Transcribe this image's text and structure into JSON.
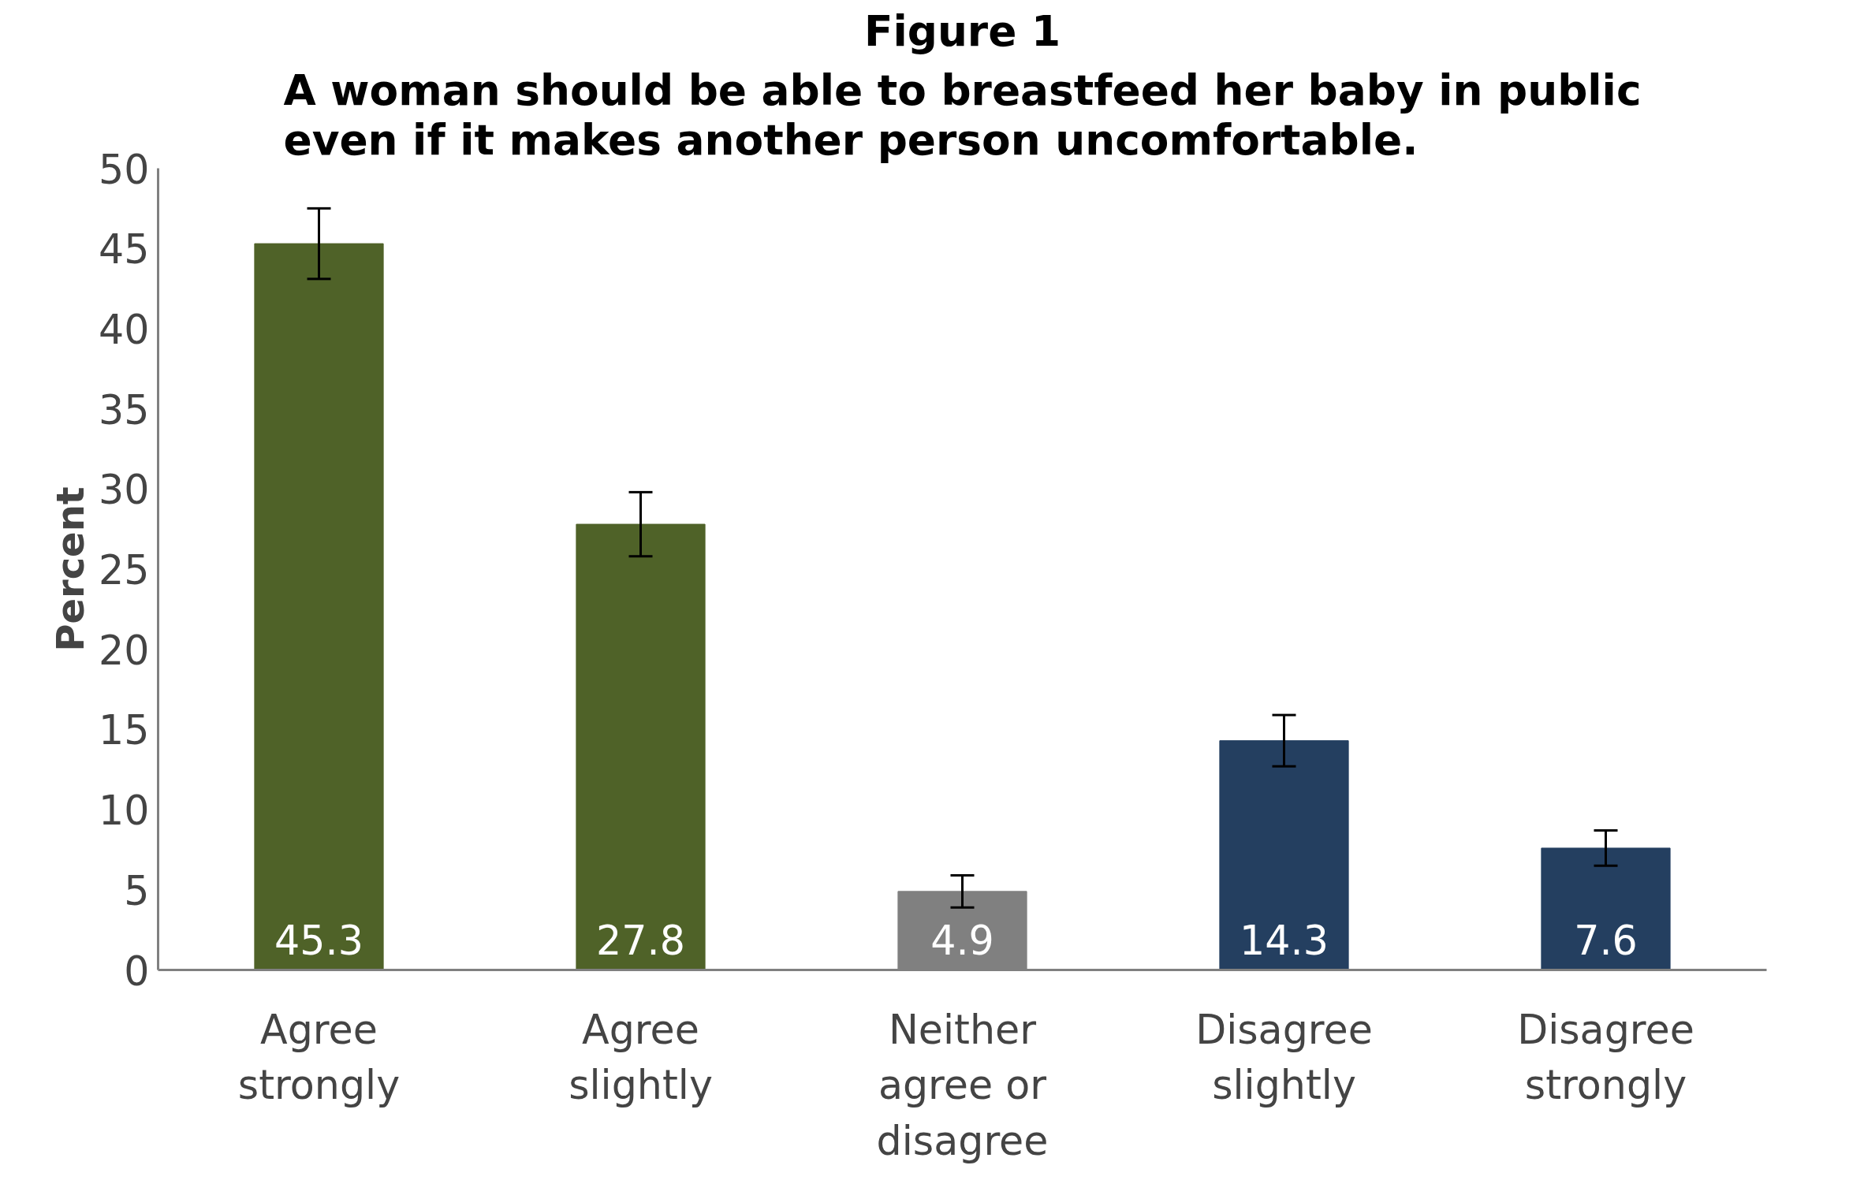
{
  "chart_data": {
    "type": "bar",
    "title": "Figure 1",
    "subtitle": "A woman should be able to breastfeed her baby in public even if it makes another person uncomfortable.",
    "ylabel": "Percent",
    "categories": [
      "Agree strongly",
      "Agree slightly",
      "Neither agree or disagree",
      "Disagree slightly",
      "Disagree strongly"
    ],
    "values": [
      45.3,
      27.8,
      4.9,
      14.3,
      7.6
    ],
    "colors": [
      "#4f6228",
      "#4f6228",
      "#808080",
      "#243f60",
      "#243f60"
    ],
    "errors": [
      2.2,
      2.0,
      1.0,
      1.6,
      1.1
    ],
    "ylim": [
      0,
      50
    ],
    "yticks": [
      0,
      5,
      10,
      15,
      20,
      25,
      30,
      35,
      40,
      45,
      50
    ],
    "data_labels": true,
    "grid": false
  }
}
